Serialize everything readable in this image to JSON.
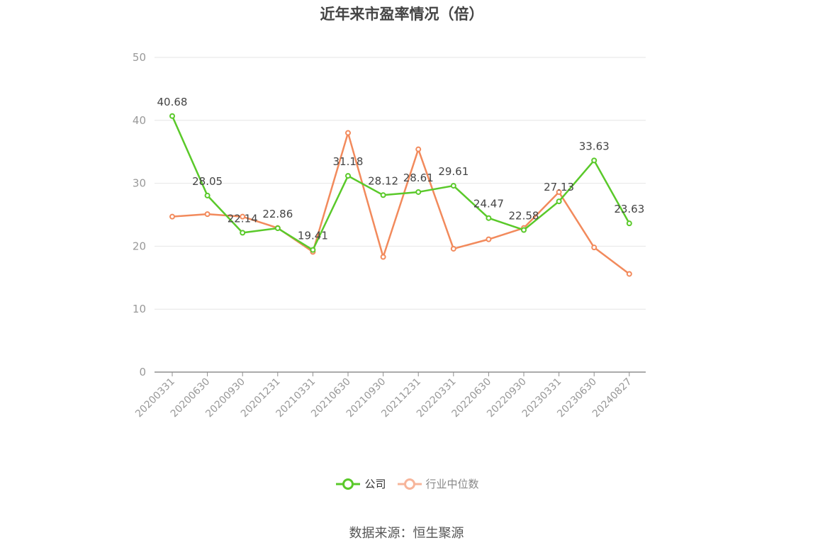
{
  "chart_data": {
    "type": "line",
    "title": "近年来市盈率情况（倍）",
    "categories": [
      "20200331",
      "20200630",
      "20200930",
      "20201231",
      "20210331",
      "20210630",
      "20210930",
      "20211231",
      "20220331",
      "20220630",
      "20220930",
      "20230331",
      "20230630",
      "20240827"
    ],
    "series": [
      {
        "name": "公司",
        "color": "#5ac92a",
        "values": [
          40.68,
          28.05,
          22.14,
          22.86,
          19.41,
          31.18,
          28.12,
          28.61,
          29.61,
          24.47,
          22.58,
          27.13,
          33.63,
          23.63
        ],
        "labels": [
          "40.68",
          "28.05",
          "22.14",
          "22.86",
          "19.41",
          "31.18",
          "28.12",
          "28.61",
          "29.61",
          "24.47",
          "22.58",
          "27.13",
          "33.63",
          "23.63"
        ]
      },
      {
        "name": "行业中位数",
        "color": "#f28a5c",
        "values": [
          24.7,
          25.1,
          24.7,
          22.9,
          19.1,
          38.0,
          18.3,
          35.4,
          19.6,
          21.1,
          22.9,
          28.6,
          19.8,
          15.6
        ]
      }
    ],
    "ylim": [
      0,
      50
    ],
    "yticks": [
      0,
      10,
      20,
      30,
      40,
      50
    ],
    "grid": true,
    "legend_position": "bottom"
  },
  "source": "数据来源：恒生聚源"
}
